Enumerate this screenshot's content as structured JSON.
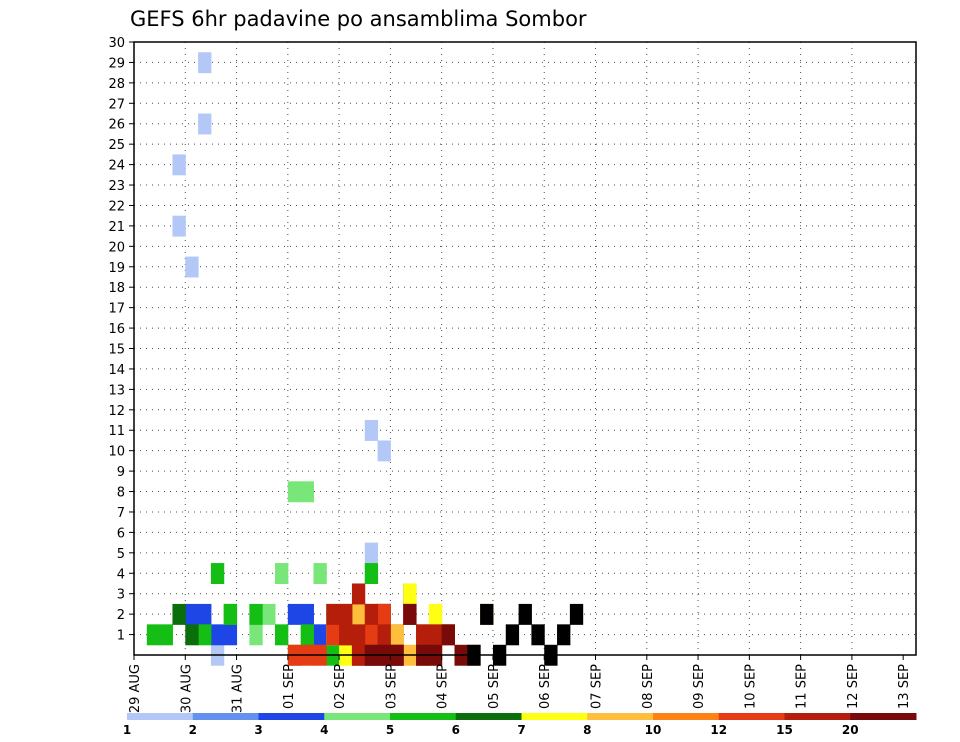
{
  "chart_data": {
    "type": "heatmap",
    "title": "GEFS 6hr padavine po ansamblima Sombor",
    "x_tick_labels": [
      "29 AUG",
      "30 AUG",
      "31 AUG",
      "01 SEP",
      "02 SEP",
      "03 SEP",
      "04 SEP",
      "05 SEP",
      "06 SEP",
      "07 SEP",
      "08 SEP",
      "09 SEP",
      "10 SEP",
      "11 SEP",
      "12 SEP",
      "13 SEP"
    ],
    "y_tick_labels": [
      "1",
      "2",
      "3",
      "4",
      "5",
      "6",
      "7",
      "8",
      "9",
      "10",
      "11",
      "12",
      "13",
      "14",
      "15",
      "16",
      "17",
      "18",
      "19",
      "20",
      "21",
      "22",
      "23",
      "24",
      "25",
      "26",
      "27",
      "28",
      "29",
      "30"
    ],
    "x_unit": "days since 29 AUG (6-hourly steps)",
    "xlim": [
      0,
      15.25
    ],
    "ylim": [
      0,
      30
    ],
    "grid": true,
    "colorbar": {
      "boundaries": [
        "1",
        "2",
        "3",
        "4",
        "5",
        "6",
        "7",
        "8",
        "10",
        "12",
        "15",
        "20"
      ],
      "colors": [
        "#b4c8f8",
        "#6490f0",
        "#1e46e6",
        "#78e678",
        "#14be14",
        "#0a6e0a",
        "#ffff14",
        "#ffbe3c",
        "#ff8214",
        "#e63c14",
        "#b41e0a",
        "#780a0a"
      ]
    },
    "cells": [
      [
        1.5,
        0,
        0
      ],
      [
        3.5,
        0,
        1
      ],
      [
        4.75,
        0,
        2
      ],
      [
        4.5,
        0,
        5
      ],
      [
        4.75,
        0,
        10
      ],
      [
        4.5,
        0,
        11
      ],
      [
        1.0,
        0,
        19
      ],
      [
        0.75,
        0,
        21
      ],
      [
        0.75,
        0,
        24
      ],
      [
        1.25,
        0,
        26
      ],
      [
        1.25,
        0,
        29
      ],
      [
        1.0,
        2,
        2
      ],
      [
        1.25,
        2,
        2
      ],
      [
        1.5,
        2,
        1
      ],
      [
        1.75,
        2,
        1
      ],
      [
        3.0,
        2,
        2
      ],
      [
        3.25,
        2,
        2
      ],
      [
        3.5,
        2,
        1
      ],
      [
        3.75,
        2,
        1
      ],
      [
        4.25,
        2,
        2
      ],
      [
        4.5,
        2,
        0
      ],
      [
        4.75,
        2,
        2
      ],
      [
        5.0,
        2,
        1
      ],
      [
        5.25,
        2,
        3
      ],
      [
        5.5,
        2,
        0
      ],
      [
        2.25,
        3,
        1
      ],
      [
        2.5,
        3,
        2
      ],
      [
        2.75,
        3,
        4
      ],
      [
        3.0,
        3,
        8
      ],
      [
        3.25,
        3,
        8
      ],
      [
        3.5,
        3,
        4
      ],
      [
        4.25,
        3,
        0
      ],
      [
        4.5,
        3,
        1
      ],
      [
        4.75,
        3,
        2
      ],
      [
        0.25,
        4,
        1
      ],
      [
        0.5,
        4,
        1
      ],
      [
        1.25,
        4,
        1
      ],
      [
        1.5,
        4,
        4
      ],
      [
        1.75,
        4,
        2
      ],
      [
        1.75,
        4,
        2
      ],
      [
        2.25,
        4,
        2
      ],
      [
        2.75,
        4,
        1
      ],
      [
        3.0,
        4,
        0
      ],
      [
        3.25,
        4,
        1
      ],
      [
        3.75,
        4,
        2
      ],
      [
        3.75,
        4,
        0
      ],
      [
        4.5,
        4,
        0
      ],
      [
        4.5,
        4,
        4
      ],
      [
        4.75,
        4,
        0
      ],
      [
        0.75,
        5,
        2
      ],
      [
        1.0,
        5,
        1
      ],
      [
        4.0,
        5,
        2
      ],
      [
        4.0,
        5,
        1
      ],
      [
        4.25,
        5,
        2
      ],
      [
        4.5,
        5,
        2
      ],
      [
        4.75,
        5,
        2
      ],
      [
        5.0,
        5,
        0
      ],
      [
        3.75,
        6,
        1
      ],
      [
        4.0,
        6,
        0
      ],
      [
        4.25,
        6,
        0
      ],
      [
        4.5,
        6,
        1
      ],
      [
        4.5,
        6,
        2
      ],
      [
        4.75,
        6,
        1
      ],
      [
        5.0,
        6,
        1
      ],
      [
        5.25,
        6,
        3
      ],
      [
        5.5,
        6,
        0
      ],
      [
        5.75,
        6,
        2
      ],
      [
        6.0,
        6,
        1
      ],
      [
        4.0,
        7,
        1
      ],
      [
        4.25,
        7,
        2
      ],
      [
        4.5,
        7,
        0
      ],
      [
        4.5,
        7,
        1
      ],
      [
        5.0,
        7,
        1
      ],
      [
        5.25,
        7,
        0
      ],
      [
        5.5,
        7,
        0
      ],
      [
        5.5,
        8,
        0
      ],
      [
        5.75,
        8,
        0
      ],
      [
        6.0,
        8,
        1
      ],
      [
        5.5,
        8,
        1
      ],
      [
        6.0,
        8,
        1
      ],
      [
        6.5,
        8,
        0
      ],
      [
        6.75,
        8,
        2
      ],
      [
        3.0,
        9,
        0
      ],
      [
        3.25,
        9,
        0
      ],
      [
        3.5,
        9,
        0
      ],
      [
        3.75,
        9,
        1
      ],
      [
        4.0,
        9,
        1
      ],
      [
        4.25,
        9,
        0
      ],
      [
        4.5,
        9,
        1
      ],
      [
        4.75,
        9,
        2
      ],
      [
        5.0,
        9,
        0
      ],
      [
        3.75,
        10,
        2
      ],
      [
        4.0,
        10,
        2
      ],
      [
        4.25,
        10,
        1
      ],
      [
        4.5,
        10,
        2
      ],
      [
        4.75,
        10,
        0
      ],
      [
        4.25,
        10,
        3
      ],
      [
        4.0,
        10,
        1
      ],
      [
        4.25,
        10,
        0
      ],
      [
        4.5,
        10,
        0
      ],
      [
        4.75,
        10,
        1
      ],
      [
        5.0,
        10,
        0
      ],
      [
        5.25,
        10,
        2
      ],
      [
        5.5,
        10,
        1
      ],
      [
        5.75,
        10,
        1
      ],
      [
        4.5,
        11,
        0
      ],
      [
        4.75,
        11,
        0
      ],
      [
        5.0,
        11,
        0
      ],
      [
        5.25,
        11,
        2
      ],
      [
        5.5,
        11,
        0
      ],
      [
        5.75,
        11,
        0
      ],
      [
        6.0,
        11,
        1
      ],
      [
        6.25,
        11,
        0
      ],
      [
        6.5,
        12,
        0
      ],
      [
        6.75,
        12,
        2
      ],
      [
        7.0,
        12,
        0
      ],
      [
        7.25,
        12,
        1
      ],
      [
        7.5,
        12,
        2
      ],
      [
        7.75,
        12,
        1
      ],
      [
        8.0,
        12,
        0
      ],
      [
        8.25,
        12,
        1
      ],
      [
        8.5,
        12,
        2
      ]
    ]
  }
}
